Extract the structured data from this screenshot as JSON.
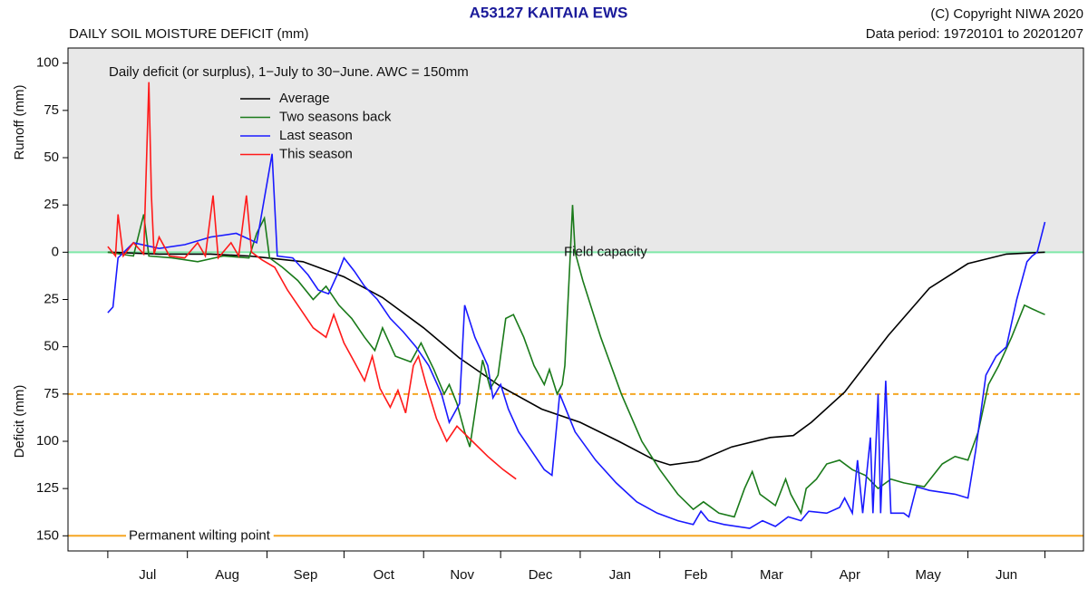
{
  "chart_data": {
    "type": "line",
    "title": "A53127  KAITAIA EWS",
    "subtitle": "DAILY SOIL MOISTURE DEFICIT (mm)",
    "copyright": "(C) Copyright NIWA  2020",
    "data_period": "Data period:  19720101  to  20201207",
    "annotation": "Daily deficit (or surplus), 1−July to 30−June.  AWC = 150mm",
    "y_label_upper": "Runoff (mm)",
    "y_label_lower": "Deficit (mm)",
    "months": [
      "Jul",
      "Aug",
      "Sep",
      "Oct",
      "Nov",
      "Dec",
      "Jan",
      "Feb",
      "Mar",
      "Apr",
      "May",
      "Jun"
    ],
    "xticks": [
      0,
      31,
      62,
      92,
      123,
      153,
      184,
      215,
      243,
      274,
      304,
      335,
      365
    ],
    "xlim": [
      -15.5,
      380
    ],
    "ylim": [
      -158,
      108
    ],
    "yticks": [
      100,
      75,
      50,
      25,
      0,
      {
        "value": -25,
        "label": "25"
      },
      {
        "value": -50,
        "label": "50"
      },
      {
        "value": -75,
        "label": "75"
      },
      {
        "value": -100,
        "label": "100"
      },
      {
        "value": -125,
        "label": "125"
      },
      {
        "value": -150,
        "label": "150"
      }
    ],
    "surplus_shade": "#e8e8e8",
    "reference_lines": [
      {
        "value": 0,
        "label": "Field capacity",
        "color": "#7fe8a8",
        "dashed": false
      },
      {
        "value": -75,
        "color": "#f5a623",
        "dashed": true
      },
      {
        "value": -150,
        "label": "Permanent wilting point",
        "color": "#f5a623",
        "dashed": false
      }
    ],
    "series": [
      {
        "name": "Average",
        "color": "#000000",
        "x": [
          0,
          20,
          40,
          55,
          62,
          76,
          92,
          107,
          123,
          137,
          153,
          169,
          184,
          199,
          213,
          219,
          230,
          243,
          258,
          267,
          274,
          287,
          304,
          320,
          335,
          350,
          365
        ],
        "values": [
          0,
          -1,
          -1,
          -2,
          -3,
          -5,
          -13,
          -24,
          -40,
          -56,
          -71,
          -83,
          -90,
          -100,
          -110,
          -112.5,
          -110.5,
          -103,
          -98,
          -97,
          -90,
          -74,
          -44,
          -19,
          -6,
          -1,
          0
        ]
      },
      {
        "name": "Two seasons back",
        "color": "#1a7a1a",
        "x": [
          0,
          10,
          14,
          16,
          25,
          35,
          45,
          55,
          58,
          61,
          63,
          68,
          74,
          80,
          85,
          90,
          95,
          100,
          104,
          107,
          112,
          118,
          122,
          127,
          131,
          133,
          136,
          139,
          141,
          143,
          146,
          149,
          152,
          155,
          158,
          162,
          166,
          170,
          172,
          175,
          177,
          178,
          180,
          181,
          182,
          185,
          192,
          200,
          208,
          215,
          222,
          228,
          232,
          238,
          244,
          248,
          251,
          254,
          260,
          264,
          266,
          270,
          272,
          276,
          280,
          285,
          290,
          295,
          300,
          305,
          310,
          318,
          325,
          330,
          335,
          339,
          343,
          347,
          352,
          357,
          360,
          365
        ],
        "values": [
          0,
          -2,
          20,
          -2,
          -3,
          -5,
          -2,
          -3,
          10,
          18,
          -3,
          -8,
          -15,
          -25,
          -18,
          -28,
          -35,
          -45,
          -52,
          -40,
          -55,
          -58,
          -48,
          -62,
          -75,
          -70,
          -80,
          -95,
          -103,
          -85,
          -57,
          -72,
          -65,
          -35,
          -33,
          -45,
          -60,
          -70,
          -62,
          -75,
          -70,
          -60,
          -5,
          25,
          0,
          -15,
          -45,
          -75,
          -100,
          -115,
          -128,
          -136,
          -132,
          -138,
          -140,
          -125,
          -116,
          -128,
          -134,
          -120,
          -128,
          -138,
          -125,
          -120,
          -112,
          -110,
          -115,
          -118,
          -125,
          -120,
          -122,
          -124,
          -112,
          -108,
          -110,
          -95,
          -70,
          -60,
          -45,
          -28,
          -30,
          -33
        ]
      },
      {
        "name": "Last season",
        "color": "#1a1aff",
        "x": [
          0,
          2,
          4,
          10,
          20,
          30,
          40,
          50,
          58,
          64,
          66,
          72,
          78,
          82,
          86,
          90,
          92,
          96,
          100,
          105,
          110,
          115,
          120,
          125,
          130,
          133,
          137,
          139,
          143,
          148,
          150,
          153,
          156,
          160,
          165,
          170,
          173,
          176,
          182,
          190,
          198,
          206,
          214,
          222,
          228,
          231,
          234,
          240,
          250,
          255,
          260,
          265,
          270,
          273,
          280,
          285,
          287,
          290,
          292,
          294,
          297,
          298,
          300,
          301,
          303,
          305,
          310,
          312,
          315,
          320,
          330,
          335,
          338,
          342,
          346,
          350,
          354,
          358,
          360,
          362,
          365
        ],
        "values": [
          -32,
          -29,
          -3,
          5,
          2,
          4,
          8,
          10,
          5,
          52,
          -2,
          -3,
          -12,
          -20,
          -22,
          -10,
          -3,
          -10,
          -18,
          -25,
          -35,
          -42,
          -50,
          -60,
          -75,
          -90,
          -80,
          -28,
          -45,
          -60,
          -77,
          -70,
          -83,
          -95,
          -105,
          -115,
          -118,
          -75,
          -95,
          -110,
          -122,
          -132,
          -138,
          -142,
          -144,
          -137,
          -142,
          -144,
          -146,
          -142,
          -145,
          -140,
          -142,
          -137,
          -138,
          -135,
          -130,
          -138,
          -110,
          -138,
          -98,
          -138,
          -75,
          -138,
          -68,
          -138,
          -138,
          -140,
          -124,
          -126,
          -128,
          -130,
          -105,
          -65,
          -55,
          -50,
          -25,
          -5,
          -2,
          0,
          16
        ]
      },
      {
        "name": "This season",
        "color": "#ff1a1a",
        "x": [
          0,
          3,
          4,
          6,
          10,
          14,
          16,
          17,
          18,
          20,
          24,
          30,
          35,
          38,
          41,
          43,
          48,
          51,
          54,
          56,
          60,
          65,
          70,
          75,
          80,
          85,
          88,
          92,
          96,
          100,
          103,
          106,
          110,
          113,
          116,
          119,
          121,
          124,
          128,
          132,
          136,
          142,
          148,
          154,
          159
        ],
        "values": [
          3,
          -2,
          20,
          -2,
          5,
          -1,
          90,
          30,
          -1,
          8,
          -2,
          -3,
          5,
          -2,
          30,
          -3,
          5,
          -2,
          30,
          0,
          -4,
          -8,
          -20,
          -30,
          -40,
          -45,
          -33,
          -48,
          -58,
          -68,
          -55,
          -72,
          -82,
          -73,
          -85,
          -60,
          -55,
          -70,
          -88,
          -100,
          -92,
          -100,
          -108,
          -115,
          -120
        ]
      }
    ]
  }
}
